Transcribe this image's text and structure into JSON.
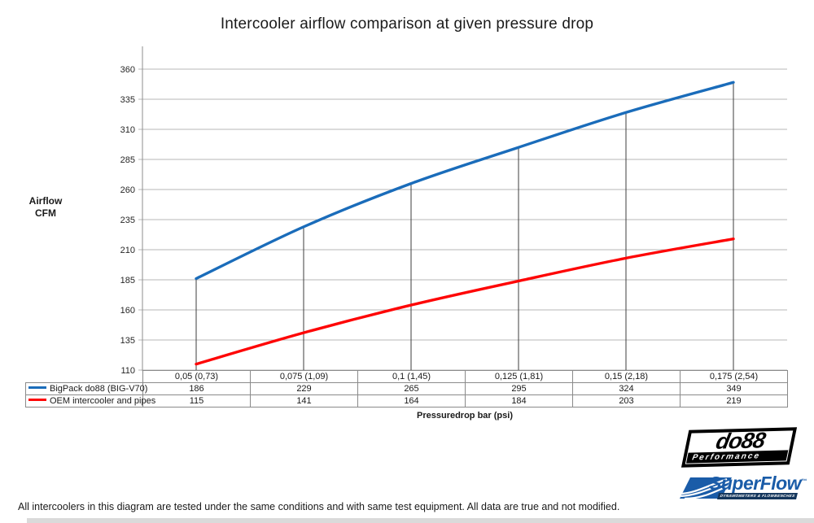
{
  "title": "Intercooler airflow comparison at given pressure drop",
  "chart_data": {
    "type": "line",
    "x_categories": [
      "0,05 (0,73)",
      "0,075 (1,09)",
      "0,1 (1,45)",
      "0,125 (1,81)",
      "0,15 (2,18)",
      "0,175 (2,54)"
    ],
    "series": [
      {
        "name": "BigPack do88 (BIG-V70)",
        "color": "#1a6cba",
        "values": [
          186,
          229,
          265,
          295,
          324,
          349
        ]
      },
      {
        "name": "OEM intercooler and pipes",
        "color": "#fe0505",
        "values": [
          115,
          141,
          164,
          184,
          203,
          219
        ]
      }
    ],
    "ylabel_line1": "Airflow",
    "ylabel_line2": "CFM",
    "xlabel": "Pressuredrop bar (psi)",
    "y_ticks": [
      360,
      335,
      310,
      285,
      260,
      235,
      210,
      185,
      160,
      135,
      110
    ],
    "ylim": [
      110,
      380
    ],
    "grid": true,
    "legend_position": "table-below-left",
    "gridline_color": "#b7b7b7",
    "axis_color": "#8c8c8c",
    "dropline_color": "#3d3d3d"
  },
  "footer_note": "All intercoolers in this diagram are tested under the same conditions and with same test equipment. All data are true and not modified.",
  "logos": {
    "do88": {
      "name": "do88",
      "tagline": "Performance"
    },
    "superflow": {
      "name": "SuperFlow",
      "tm": "™",
      "tagline": "DYNAMOMETERS & FLOWBENCHES",
      "color": "#1a5ca8"
    }
  }
}
